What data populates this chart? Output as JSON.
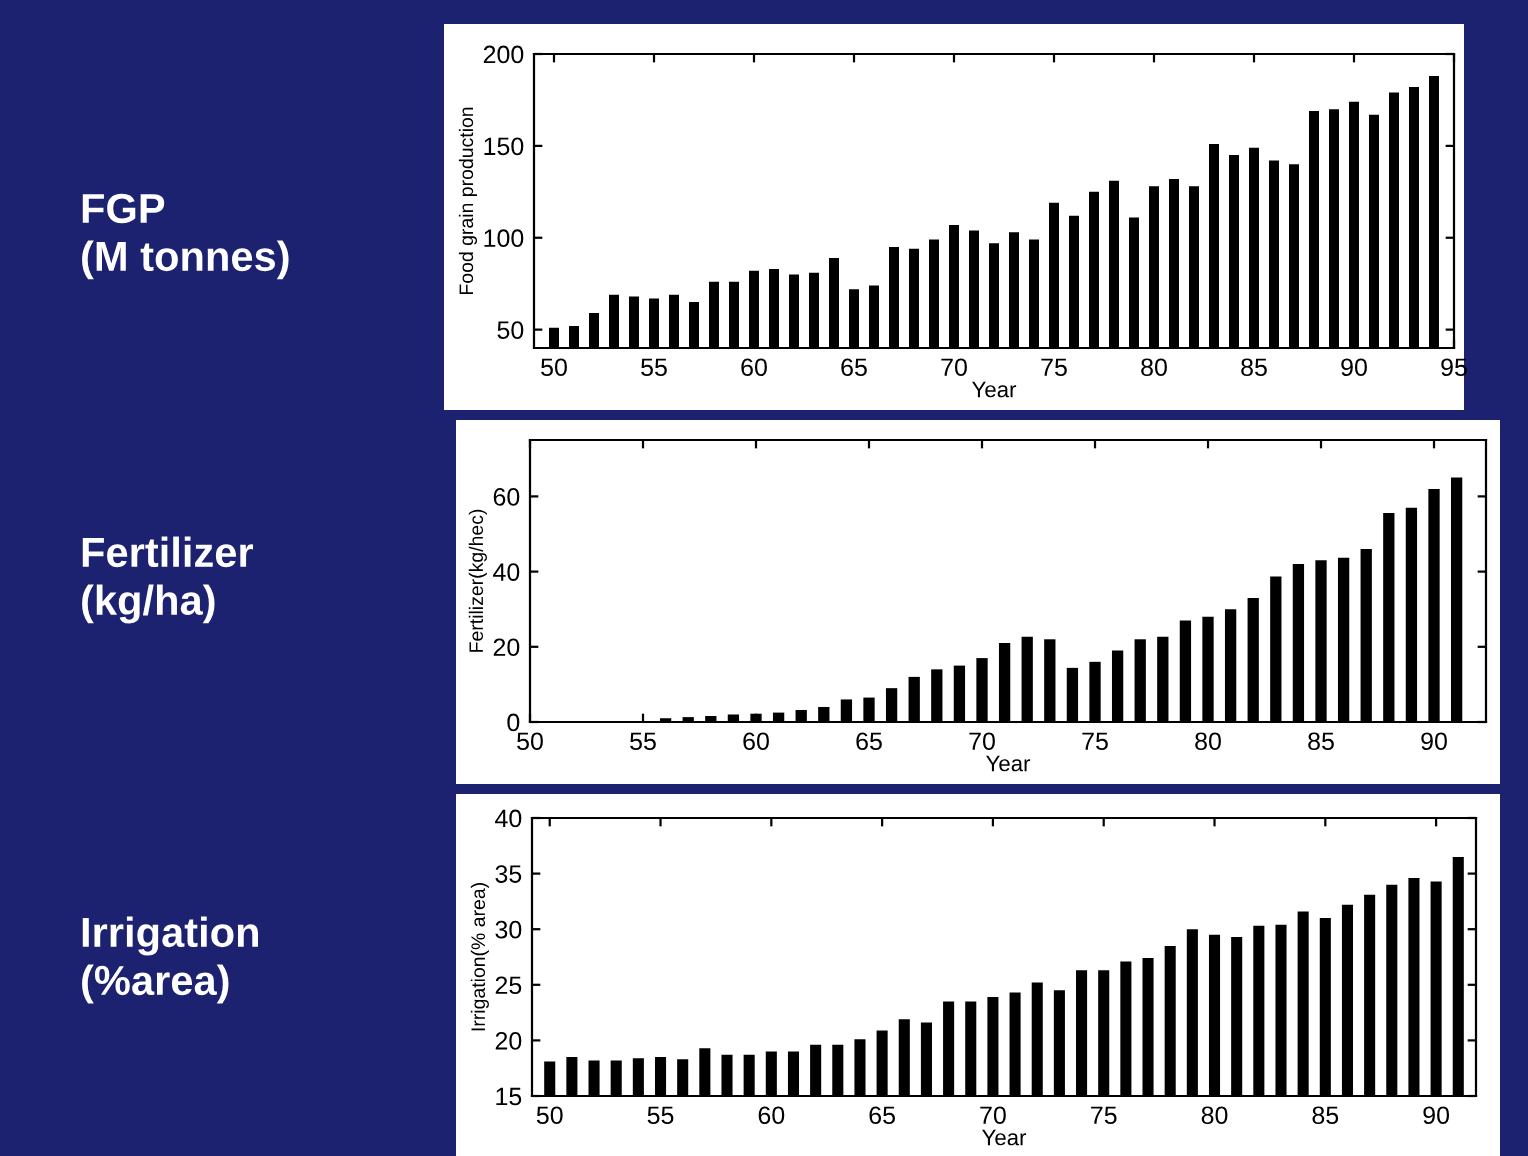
{
  "chart_data": [
    {
      "type": "bar",
      "xlabel": "Year",
      "ylabel": "Food grain production",
      "annotations": [
        "FGP\n(M tonnes)"
      ],
      "color": "#000000",
      "xlim": [
        49,
        95
      ],
      "xticks": [
        50,
        55,
        60,
        65,
        70,
        75,
        80,
        85,
        90,
        95
      ],
      "ylim": [
        40,
        200
      ],
      "yticks": [
        50,
        100,
        150,
        200
      ],
      "x": [
        50,
        51,
        52,
        53,
        54,
        55,
        56,
        57,
        58,
        59,
        60,
        61,
        62,
        63,
        64,
        65,
        66,
        67,
        68,
        69,
        70,
        71,
        72,
        73,
        74,
        75,
        76,
        77,
        78,
        79,
        80,
        81,
        82,
        83,
        84,
        85,
        86,
        87,
        88,
        89,
        90,
        91,
        92,
        93,
        94
      ],
      "values": [
        51,
        52,
        59,
        69,
        68,
        67,
        69,
        65,
        76,
        76,
        82,
        83,
        80,
        81,
        89,
        72,
        74,
        95,
        94,
        99,
        107,
        104,
        97,
        103,
        99,
        119,
        112,
        125,
        131,
        111,
        128,
        132,
        128,
        151,
        145,
        149,
        142,
        140,
        169,
        170,
        174,
        167,
        179,
        182,
        188
      ]
    },
    {
      "type": "bar",
      "xlabel": "Year",
      "ylabel": "Fertilizer(kg/hec)",
      "annotations": [
        "Fertilizer\n(kg/ha)"
      ],
      "color": "#000000",
      "xlim": [
        50,
        92.3
      ],
      "xticks": [
        50,
        55,
        60,
        65,
        70,
        75,
        80,
        85,
        90
      ],
      "ylim": [
        0,
        75
      ],
      "yticks": [
        0,
        20,
        40,
        60
      ],
      "x": [
        56,
        57,
        58,
        59,
        60,
        61,
        62,
        63,
        64,
        65,
        66,
        67,
        68,
        69,
        70,
        71,
        72,
        73,
        74,
        75,
        76,
        77,
        78,
        79,
        80,
        81,
        82,
        83,
        84,
        85,
        86,
        87,
        88,
        89,
        90,
        91
      ],
      "values": [
        1,
        1.3,
        1.6,
        2,
        2.2,
        2.5,
        3.2,
        4,
        6,
        6.5,
        9,
        12,
        14,
        15,
        17,
        21,
        22.7,
        22,
        14.4,
        16,
        19,
        22,
        22.7,
        27,
        28,
        30,
        33,
        38.7,
        42,
        43,
        43.7,
        46,
        55.6,
        57,
        62,
        65
      ]
    },
    {
      "type": "bar",
      "xlabel": "Year",
      "ylabel": "Irrigation(% area)",
      "annotations": [
        "Irrigation\n(%area)"
      ],
      "color": "#000000",
      "xlim": [
        49.2,
        91.8
      ],
      "xticks": [
        50,
        55,
        60,
        65,
        70,
        75,
        80,
        85,
        90
      ],
      "ylim": [
        15,
        40
      ],
      "yticks": [
        15,
        20,
        25,
        30,
        35,
        40
      ],
      "x": [
        50,
        51,
        52,
        53,
        54,
        55,
        56,
        57,
        58,
        59,
        60,
        61,
        62,
        63,
        64,
        65,
        66,
        67,
        68,
        69,
        70,
        71,
        72,
        73,
        74,
        75,
        76,
        77,
        78,
        79,
        80,
        81,
        82,
        83,
        84,
        85,
        86,
        87,
        88,
        89,
        90,
        91
      ],
      "values": [
        18.1,
        18.5,
        18.2,
        18.2,
        18.4,
        18.5,
        18.3,
        19.3,
        18.7,
        18.7,
        19.0,
        19.0,
        19.6,
        19.6,
        20.1,
        20.9,
        21.9,
        21.6,
        23.5,
        23.5,
        23.9,
        24.3,
        25.2,
        24.5,
        26.3,
        26.3,
        27.1,
        27.4,
        28.5,
        30.0,
        29.5,
        29.3,
        30.3,
        30.4,
        31.6,
        31.0,
        32.2,
        33.1,
        34.0,
        34.6,
        34.3,
        36.5
      ]
    }
  ]
}
